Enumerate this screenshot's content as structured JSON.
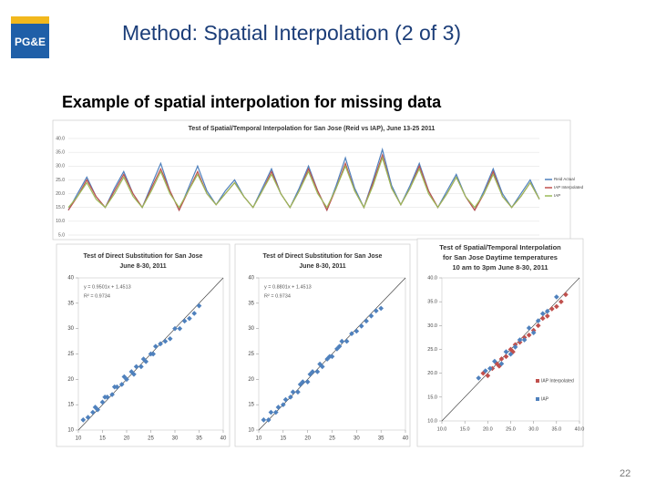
{
  "header": {
    "logo": "PG&E",
    "title": "Method: Spatial Interpolation (2 of 3)"
  },
  "subtitle": "Example of spatial interpolation for missing data",
  "page_number": "22",
  "chart_data": [
    {
      "type": "line",
      "title": [
        "Test of Spatial/Temporal Interpolation for San Jose (Reid vs IAP), June 13-25 2011"
      ],
      "categories": [
        null,
        null,
        null,
        null,
        null,
        null,
        null,
        null,
        null,
        null,
        null,
        null,
        null,
        null,
        null,
        null,
        null,
        null,
        null,
        null,
        null,
        null,
        null,
        null,
        null,
        null,
        null,
        null,
        null,
        null,
        null,
        null,
        null,
        null,
        null,
        null,
        null,
        null,
        null,
        null,
        null,
        null,
        null,
        null,
        null,
        null,
        null,
        null,
        null,
        null,
        null,
        null
      ],
      "ylim": [
        5,
        40
      ],
      "yticks": [
        {
          "value": 5,
          "label": "5.0"
        },
        {
          "value": 10,
          "label": "10.0"
        },
        {
          "value": 15,
          "label": "15.0"
        },
        {
          "value": 20,
          "label": "20.0"
        },
        {
          "value": 25,
          "label": "25.0"
        },
        {
          "value": 30,
          "label": "30.0"
        },
        {
          "value": 35,
          "label": "35.0"
        },
        {
          "value": 40,
          "label": "40.0"
        }
      ],
      "grid": true,
      "legend": "right",
      "series": [
        {
          "name": "Reid Actual",
          "color": "#4f81bd",
          "values": [
            14,
            20,
            26,
            19,
            15,
            22,
            28,
            20,
            15,
            23,
            31,
            21,
            14,
            22,
            30,
            21,
            16,
            21,
            25,
            19,
            15,
            22,
            29,
            20,
            15,
            22,
            30,
            21,
            14,
            23,
            33,
            22,
            15,
            25,
            36,
            23,
            16,
            23,
            31,
            21,
            15,
            21,
            27,
            19,
            14,
            21,
            29,
            20,
            15,
            20,
            25,
            18
          ]
        },
        {
          "name": "IAP Interpolated",
          "color": "#c0504d",
          "values": [
            14,
            19,
            25,
            19,
            15,
            21,
            27,
            20,
            15,
            22,
            29,
            21,
            14,
            21,
            28,
            20,
            16,
            20,
            24,
            19,
            15,
            21,
            28,
            20,
            15,
            21,
            29,
            21,
            14,
            22,
            31,
            21,
            15,
            24,
            34,
            22,
            16,
            22,
            30,
            21,
            15,
            20,
            26,
            19,
            14,
            20,
            28,
            19,
            15,
            19,
            24,
            18
          ]
        },
        {
          "name": "IAP",
          "color": "#9bbb59",
          "values": [
            15,
            19,
            24,
            18,
            15,
            20,
            26,
            19,
            15,
            21,
            28,
            20,
            15,
            21,
            27,
            20,
            16,
            20,
            24,
            19,
            15,
            21,
            27,
            20,
            15,
            21,
            28,
            20,
            15,
            22,
            30,
            21,
            15,
            23,
            33,
            22,
            16,
            22,
            29,
            20,
            15,
            20,
            26,
            19,
            15,
            20,
            27,
            19,
            15,
            19,
            24,
            18
          ]
        }
      ]
    },
    {
      "type": "scatter",
      "title": [
        "Test of Direct Substitution for San Jose",
        "June 8-30, 2011"
      ],
      "annotations": [
        "y = 0.9501x + 1.4513",
        "R² = 0.9734"
      ],
      "xlim": [
        10,
        40
      ],
      "ylim": [
        10,
        40
      ],
      "xticks": [
        10,
        15,
        20,
        25,
        30,
        35,
        40
      ],
      "yticks": [
        10,
        15,
        20,
        25,
        30,
        35,
        40
      ],
      "color": "#4f81bd",
      "x": [
        11,
        12,
        13,
        13.5,
        14,
        15,
        15.5,
        16,
        17,
        17.5,
        18,
        19,
        19.5,
        20,
        21,
        21.5,
        22,
        23,
        23.5,
        24,
        25,
        25.5,
        26,
        27,
        28,
        29,
        30,
        31,
        32,
        33,
        34,
        35
      ],
      "values": [
        12,
        12.5,
        13.5,
        14.5,
        14,
        15.5,
        16.5,
        16.5,
        17,
        18.5,
        18.5,
        19,
        20.5,
        20,
        21.5,
        21,
        22.5,
        22.5,
        24,
        23.5,
        25,
        25,
        26.5,
        27,
        27.5,
        28,
        30,
        30,
        31.5,
        32,
        33,
        34.5
      ]
    },
    {
      "type": "scatter",
      "title": [
        "Test of Direct Substitution for San Jose",
        "June 8-30, 2011"
      ],
      "annotations": [
        "y = 0.8801x + 1.4513",
        "R² = 0.9734"
      ],
      "xlim": [
        10,
        40
      ],
      "ylim": [
        10,
        40
      ],
      "xticks": [
        10,
        15,
        20,
        25,
        30,
        35,
        40
      ],
      "yticks": [
        10,
        15,
        20,
        25,
        30,
        35,
        40
      ],
      "color": "#4f81bd",
      "x": [
        11,
        12,
        12.5,
        13.5,
        14,
        15,
        15.5,
        16.5,
        17,
        18,
        18.5,
        19,
        20,
        20.5,
        21,
        22,
        22.5,
        23,
        24,
        24.5,
        25,
        26,
        26.5,
        27,
        28,
        29,
        30,
        31,
        32,
        33,
        34,
        35
      ],
      "values": [
        12,
        12,
        13.5,
        13.5,
        14.5,
        15,
        16,
        16.5,
        17.5,
        17.5,
        19,
        19.5,
        19.5,
        21,
        21.5,
        21.5,
        23,
        22.5,
        24,
        24.5,
        24.5,
        26,
        26.5,
        27.5,
        27.5,
        29,
        29.5,
        30.5,
        31.5,
        32.5,
        33.5,
        34
      ]
    },
    {
      "type": "scatter",
      "title": [
        "Test of Spatial/Temporal Interpolation",
        "for San Jose  Daytime temperatures",
        "10 am to 3pm June 8-30, 2011"
      ],
      "xlim": [
        10,
        40
      ],
      "ylim": [
        10,
        40
      ],
      "xticks": [
        {
          "value": 10,
          "label": "10.0"
        },
        {
          "value": 15,
          "label": "15.0"
        },
        {
          "value": 20,
          "label": "20.0"
        },
        {
          "value": 25,
          "label": "25.0"
        },
        {
          "value": 30,
          "label": "30.0"
        },
        {
          "value": 35,
          "label": "35.0"
        },
        {
          "value": 40,
          "label": "40.0"
        }
      ],
      "yticks": [
        {
          "value": 10,
          "label": "10.0"
        },
        {
          "value": 15,
          "label": "15.0"
        },
        {
          "value": 20,
          "label": "20.0"
        },
        {
          "value": 25,
          "label": "25.0"
        },
        {
          "value": 30,
          "label": "30.0"
        },
        {
          "value": 35,
          "label": "35.0"
        },
        {
          "value": 40,
          "label": "40.0"
        }
      ],
      "legend": "lower right",
      "series": [
        {
          "name": "IAP Interpolated",
          "color": "#c0504d",
          "x": [
            19,
            20,
            21,
            22,
            22.5,
            23,
            24,
            25,
            25.5,
            26,
            27,
            28,
            29,
            30,
            31,
            32,
            33,
            34,
            35,
            36,
            37
          ],
          "values": [
            20,
            19.5,
            21,
            22,
            21.5,
            23,
            23.5,
            25,
            24.5,
            26,
            26.5,
            27.5,
            28,
            29,
            30,
            31.5,
            32,
            33.5,
            34,
            35,
            36.5
          ]
        },
        {
          "name": "IAP",
          "color": "#4f81bd",
          "x": [
            18,
            19.5,
            20.5,
            21.5,
            23,
            24,
            25,
            26,
            27,
            28,
            29,
            30,
            31,
            32,
            33,
            35
          ],
          "values": [
            19,
            20.5,
            21,
            22.5,
            22,
            24.5,
            24,
            25.5,
            27,
            27,
            29.5,
            28.5,
            31,
            32.5,
            33,
            36
          ]
        }
      ]
    }
  ]
}
